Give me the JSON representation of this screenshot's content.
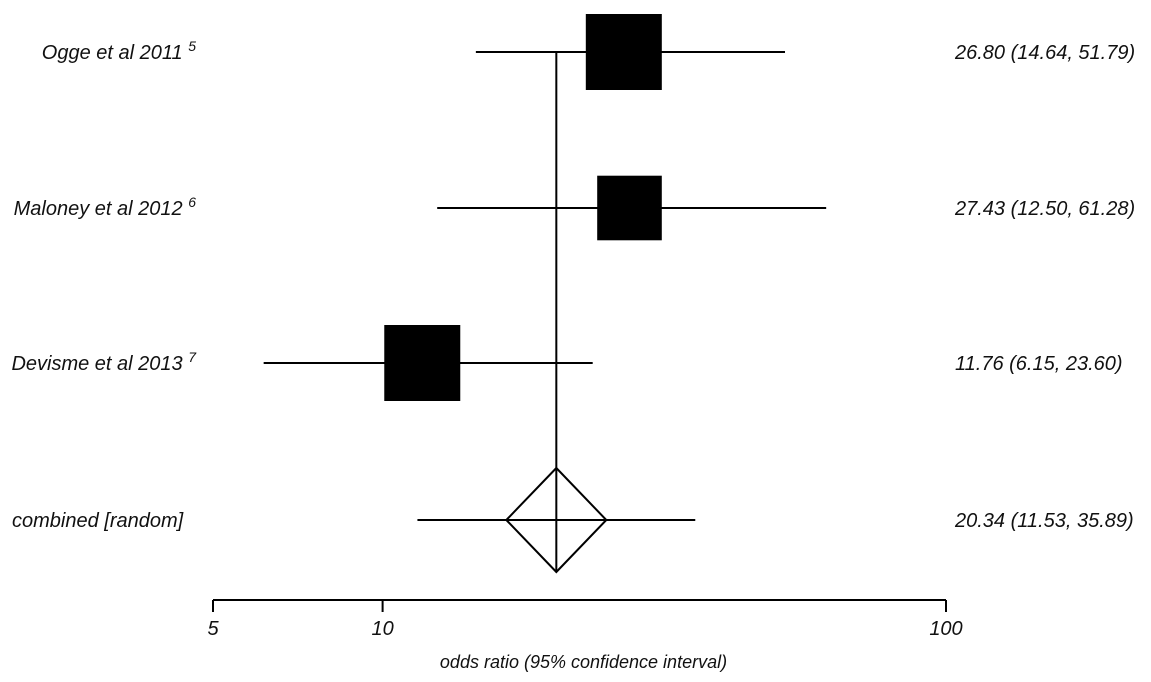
{
  "chart_data": {
    "type": "forest",
    "xlabel": "odds ratio (95% confidence interval)",
    "x_scale": "log",
    "xlim": [
      5,
      100
    ],
    "x_ticks": [
      {
        "value": 5,
        "label": "5"
      },
      {
        "value": 10,
        "label": "10"
      },
      {
        "value": 100,
        "label": "100"
      }
    ],
    "reference_line": 20.34,
    "studies": [
      {
        "name": "Ogge et al 2011",
        "ref": "5",
        "or": 26.8,
        "lo": 14.64,
        "hi": 51.79,
        "weight": 1.0,
        "ci_text": "26.80 (14.64, 51.79)"
      },
      {
        "name": "Maloney et al 2012",
        "ref": "6",
        "or": 27.43,
        "lo": 12.5,
        "hi": 61.28,
        "weight": 0.85,
        "ci_text": "27.43 (12.50, 61.28)"
      },
      {
        "name": "Devisme et al 2013",
        "ref": "7",
        "or": 11.76,
        "lo": 6.15,
        "hi": 23.6,
        "weight": 1.0,
        "ci_text": "11.76 (6.15, 23.60)"
      }
    ],
    "combined": {
      "name": "combined [random]",
      "or": 20.34,
      "lo": 11.53,
      "hi": 35.89,
      "ci_text": "20.34 (11.53, 35.89)"
    }
  }
}
